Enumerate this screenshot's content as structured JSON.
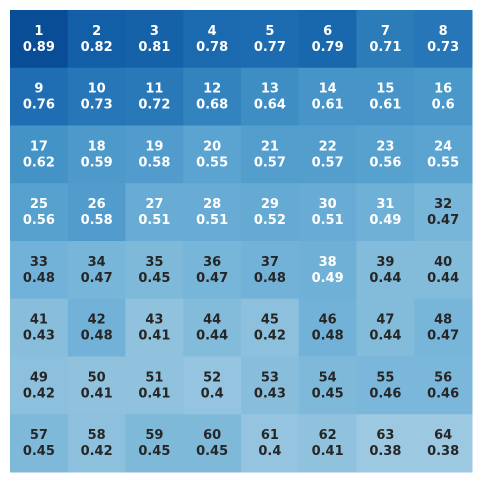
{
  "chart_data": {
    "type": "heatmap",
    "rows": 8,
    "cols": 8,
    "grid": false,
    "colormap": "Blues",
    "colormap_anchor_colors": [
      "#f7fbff",
      "#deebf7",
      "#c6dbef",
      "#9ecae1",
      "#6baed6",
      "#4292c6",
      "#2171b5",
      "#08519c",
      "#08306b"
    ],
    "text_colors": {
      "dark": "#262626",
      "light": "#ffffff"
    },
    "labels": [
      "1",
      "2",
      "3",
      "4",
      "5",
      "6",
      "7",
      "8",
      "9",
      "10",
      "11",
      "12",
      "13",
      "14",
      "15",
      "16",
      "17",
      "18",
      "19",
      "20",
      "21",
      "22",
      "23",
      "24",
      "25",
      "26",
      "27",
      "28",
      "29",
      "30",
      "31",
      "32",
      "33",
      "34",
      "35",
      "36",
      "37",
      "38",
      "39",
      "40",
      "41",
      "42",
      "43",
      "44",
      "45",
      "46",
      "47",
      "48",
      "49",
      "50",
      "51",
      "52",
      "53",
      "54",
      "55",
      "56",
      "57",
      "58",
      "59",
      "60",
      "61",
      "62",
      "63",
      "64"
    ],
    "values": [
      0.89,
      0.82,
      0.81,
      0.78,
      0.77,
      0.79,
      0.71,
      0.73,
      0.76,
      0.73,
      0.72,
      0.68,
      0.64,
      0.61,
      0.61,
      0.6,
      0.62,
      0.59,
      0.58,
      0.55,
      0.57,
      0.57,
      0.56,
      0.55,
      0.56,
      0.58,
      0.51,
      0.51,
      0.52,
      0.51,
      0.49,
      0.47,
      0.48,
      0.47,
      0.45,
      0.47,
      0.48,
      0.49,
      0.44,
      0.44,
      0.43,
      0.48,
      0.41,
      0.44,
      0.42,
      0.48,
      0.44,
      0.47,
      0.42,
      0.41,
      0.41,
      0.4,
      0.43,
      0.45,
      0.46,
      0.46,
      0.45,
      0.42,
      0.45,
      0.45,
      0.4,
      0.41,
      0.38,
      0.38
    ],
    "color_value_range": [
      0.0,
      1.0
    ],
    "value_display": [
      "0.89",
      "0.82",
      "0.81",
      "0.78",
      "0.77",
      "0.79",
      "0.71",
      "0.73",
      "0.76",
      "0.73",
      "0.72",
      "0.68",
      "0.64",
      "0.61",
      "0.61",
      "0.6",
      "0.62",
      "0.59",
      "0.58",
      "0.55",
      "0.57",
      "0.57",
      "0.56",
      "0.55",
      "0.56",
      "0.58",
      "0.51",
      "0.51",
      "0.52",
      "0.51",
      "0.49",
      "0.47",
      "0.48",
      "0.47",
      "0.45",
      "0.47",
      "0.48",
      "0.49",
      "0.44",
      "0.44",
      "0.43",
      "0.48",
      "0.41",
      "0.44",
      "0.42",
      "0.48",
      "0.44",
      "0.47",
      "0.42",
      "0.41",
      "0.41",
      "0.4",
      "0.43",
      "0.45",
      "0.46",
      "0.46",
      "0.45",
      "0.42",
      "0.45",
      "0.45",
      "0.4",
      "0.41",
      "0.38",
      "0.38"
    ],
    "text_color_values": [
      "light",
      "light",
      "light",
      "light",
      "light",
      "light",
      "light",
      "light",
      "light",
      "light",
      "light",
      "light",
      "light",
      "light",
      "light",
      "light",
      "light",
      "light",
      "light",
      "light",
      "light",
      "light",
      "light",
      "light",
      "light",
      "light",
      "light",
      "light",
      "light",
      "light",
      "light",
      "dark",
      "dark",
      "dark",
      "dark",
      "dark",
      "dark",
      "light",
      "dark",
      "dark",
      "dark",
      "dark",
      "dark",
      "dark",
      "dark",
      "dark",
      "dark",
      "dark",
      "dark",
      "dark",
      "dark",
      "dark",
      "dark",
      "dark",
      "dark",
      "dark",
      "dark",
      "dark",
      "dark",
      "dark",
      "dark",
      "dark",
      "dark",
      "dark"
    ]
  }
}
